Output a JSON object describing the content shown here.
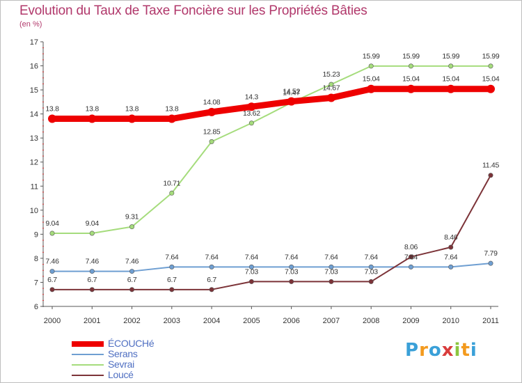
{
  "header": {
    "title": "Evolution du Taux de Taxe Foncière sur les Propriétés Bâties",
    "subtitle": "(en %)"
  },
  "logo": {
    "letters": [
      "P",
      "r",
      "o",
      "x",
      "i",
      "t",
      "i"
    ],
    "colors": [
      "#3aa0d8",
      "#f39a1e",
      "#3aa0d8",
      "#d93c3c",
      "#8cc63f",
      "#f39a1e",
      "#3aa0d8"
    ]
  },
  "chart_data": {
    "type": "line",
    "title": "Evolution du Taux de Taxe Foncière sur les Propriétés Bâties",
    "subtitle": "(en %)",
    "xlabel": "",
    "ylabel": "",
    "x": [
      "2000",
      "2001",
      "2002",
      "2003",
      "2004",
      "2005",
      "2006",
      "2007",
      "2008",
      "2009",
      "2010",
      "2011"
    ],
    "ylim": [
      6,
      17
    ],
    "yticks": [
      6,
      7,
      8,
      9,
      10,
      11,
      12,
      13,
      14,
      15,
      16,
      17
    ],
    "grid": false,
    "legend_position": "bottom-left",
    "series": [
      {
        "name": "ÉCOUCHé",
        "color": "#ee0000",
        "values": [
          13.8,
          13.8,
          13.8,
          13.8,
          14.08,
          14.3,
          14.52,
          14.67,
          15.04,
          15.04,
          15.04,
          15.04
        ],
        "labels": [
          "13.8",
          "13.8",
          "13.8",
          "13.8",
          "14.08",
          "14.3",
          "14.52",
          "14.67",
          "15.04",
          "15.04",
          "15.04",
          "15.04"
        ]
      },
      {
        "name": "Serans",
        "color": "#6f9fd2",
        "values": [
          7.46,
          7.46,
          7.46,
          7.64,
          7.64,
          7.64,
          7.64,
          7.64,
          7.64,
          7.64,
          7.64,
          7.79
        ],
        "labels": [
          "7.46",
          "7.46",
          "7.46",
          "7.64",
          "7.64",
          "7.64",
          "7.64",
          "7.64",
          "7.64",
          "7.64",
          "7.64",
          "7.79"
        ]
      },
      {
        "name": "Sevrai",
        "color": "#a5dc7c",
        "values": [
          9.04,
          9.04,
          9.31,
          10.71,
          12.85,
          13.62,
          14.47,
          15.23,
          15.99,
          15.99,
          15.99,
          15.99
        ],
        "labels": [
          "9.04",
          "9.04",
          "9.31",
          "10.71",
          "12.85",
          "13.62",
          "14.47",
          "15.23",
          "15.99",
          "15.99",
          "15.99",
          "15.99"
        ]
      },
      {
        "name": "Loucé",
        "color": "#7c3338",
        "values": [
          6.7,
          6.7,
          6.7,
          6.7,
          6.7,
          7.03,
          7.03,
          7.03,
          7.03,
          8.06,
          8.46,
          11.45
        ],
        "labels": [
          "6.7",
          "6.7",
          "6.7",
          "6.7",
          "6.7",
          "7.03",
          "7.03",
          "7.03",
          "7.03",
          "8.06",
          "8.46",
          "11.45"
        ]
      }
    ]
  }
}
